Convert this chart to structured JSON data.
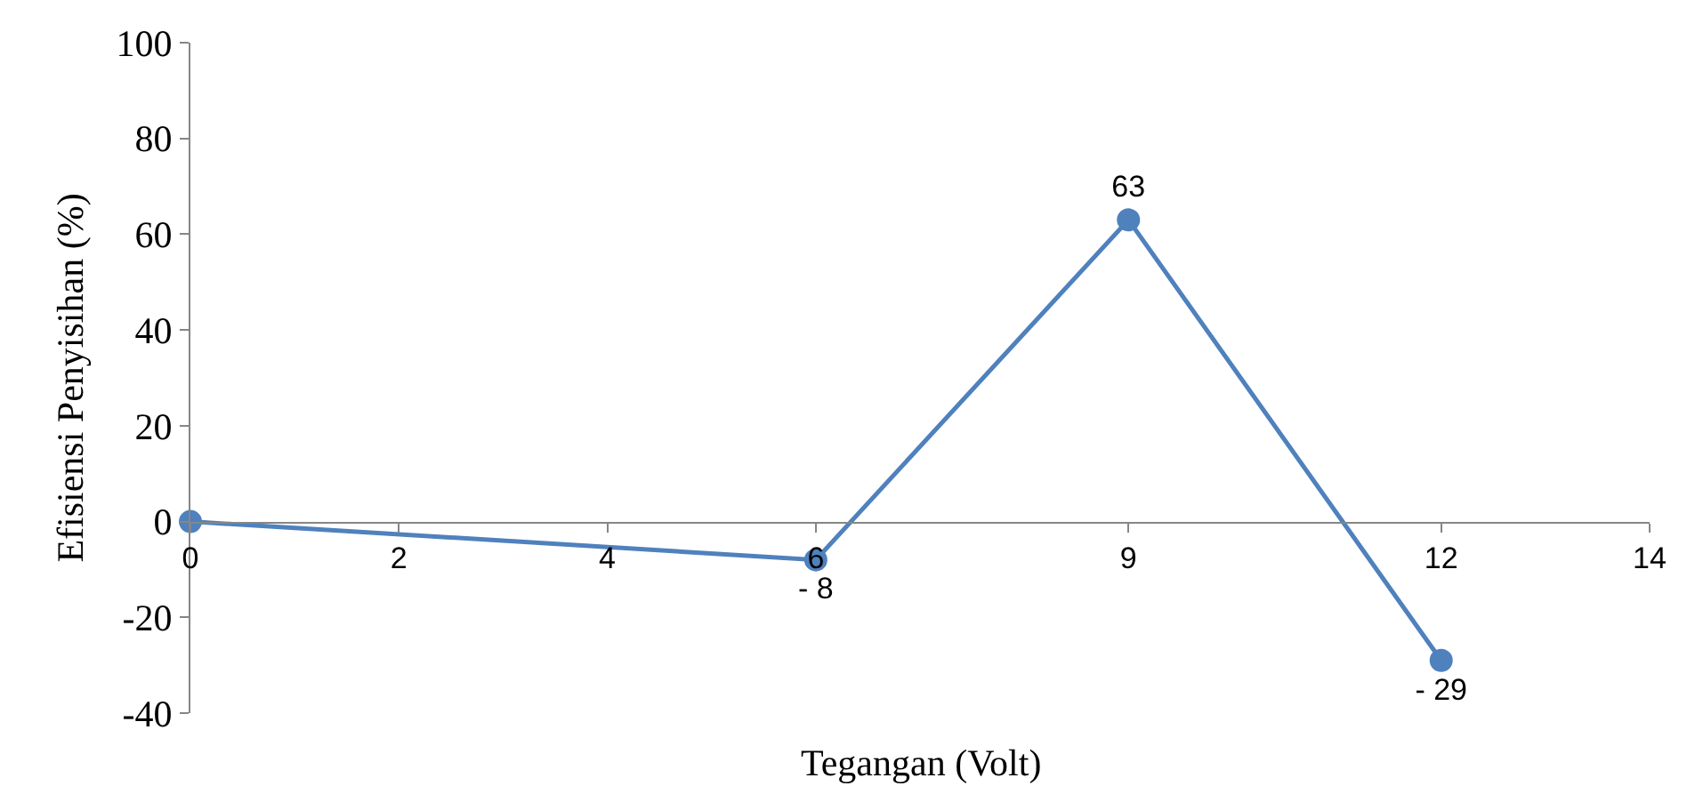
{
  "chart_data": {
    "type": "line",
    "xlabel": "Tegangan (Volt)",
    "ylabel": "Efisiensi Penyisihan (%)",
    "x": [
      0,
      6,
      9,
      12
    ],
    "series": [
      {
        "color": "#4f81bd",
        "values": [
          0,
          -8,
          63,
          -29
        ],
        "value_labels": [
          null,
          "- 8",
          "63",
          "- 29"
        ]
      }
    ],
    "xlim": [
      0,
      14
    ],
    "xticks": [
      0,
      2,
      4,
      6,
      9,
      12,
      14
    ],
    "ylim": [
      -40,
      100
    ],
    "yticks": [
      -40,
      -20,
      0,
      20,
      40,
      60,
      80,
      100
    ],
    "marker": "circle",
    "line_style": "solid"
  }
}
